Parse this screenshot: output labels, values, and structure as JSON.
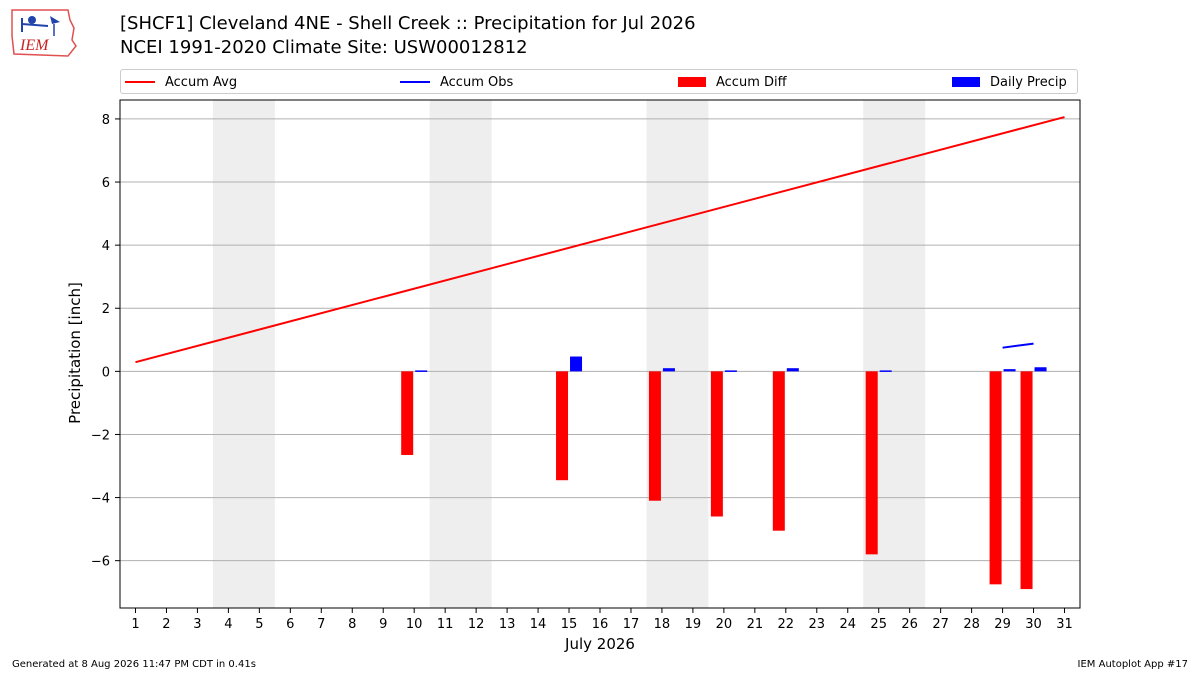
{
  "logo": {
    "text": "IEM"
  },
  "header": {
    "title_line1": "[SHCF1] Cleveland 4NE - Shell Creek :: Precipitation for Jul 2026",
    "title_line2": "NCEI 1991-2020 Climate Site: USW00012812"
  },
  "legend": {
    "items": [
      {
        "label": "Accum Avg",
        "color": "#ff0000",
        "kind": "line"
      },
      {
        "label": "Accum Obs",
        "color": "#0000ff",
        "kind": "line"
      },
      {
        "label": "Accum Diff",
        "color": "#ff0000",
        "kind": "box"
      },
      {
        "label": "Daily Precip",
        "color": "#0000ff",
        "kind": "box"
      }
    ]
  },
  "footer": {
    "generated": "Generated at 8 Aug 2026 11:47 PM CDT in 0.41s",
    "app": "IEM Autoplot App #17"
  },
  "chart_data": {
    "type": "bar",
    "title": "[SHCF1] Cleveland 4NE - Shell Creek :: Precipitation for Jul 2026",
    "subtitle": "NCEI 1991-2020 Climate Site: USW00012812",
    "xlabel": "July 2026",
    "ylabel": "Precipitation [inch]",
    "xlim": [
      0.5,
      31.5
    ],
    "ylim": [
      -7.5,
      8.6
    ],
    "yticks": [
      8,
      6,
      4,
      2,
      0,
      -2,
      -4,
      -6
    ],
    "ytick_labels": [
      "8",
      "6",
      "4",
      "2",
      "0",
      "−2",
      "−4",
      "−6"
    ],
    "xticks": [
      1,
      2,
      3,
      4,
      5,
      6,
      7,
      8,
      9,
      10,
      11,
      12,
      13,
      14,
      15,
      16,
      17,
      18,
      19,
      20,
      21,
      22,
      23,
      24,
      25,
      26,
      27,
      28,
      29,
      30,
      31
    ],
    "grid": "horizontal",
    "legend_position": "top",
    "weekend_shading": [
      [
        3.5,
        5.5
      ],
      [
        10.5,
        12.5
      ],
      [
        17.5,
        19.5
      ],
      [
        24.5,
        26.5
      ]
    ],
    "shading_color": "#eeeeee",
    "accum_avg": {
      "name": "Accum Avg",
      "color": "#ff0000",
      "x": [
        1,
        31
      ],
      "y": [
        0.29,
        8.06
      ]
    },
    "accum_obs": {
      "name": "Accum Obs",
      "color": "#0000ff",
      "x": [
        29,
        30
      ],
      "y": [
        0.75,
        0.88
      ]
    },
    "accum_diff": {
      "name": "Accum Diff",
      "color": "#ff0000",
      "x": [
        10,
        15,
        18,
        20,
        22,
        25,
        29,
        30
      ],
      "values": [
        -2.65,
        -3.45,
        -4.1,
        -4.6,
        -5.05,
        -5.8,
        -6.75,
        -6.9
      ]
    },
    "daily_precip": {
      "name": "Daily Precip",
      "color": "#0000ff",
      "x": [
        10,
        15,
        18,
        20,
        22,
        25,
        29,
        30
      ],
      "values": [
        0.03,
        0.47,
        0.1,
        0.03,
        0.1,
        0.03,
        0.07,
        0.13
      ]
    }
  }
}
